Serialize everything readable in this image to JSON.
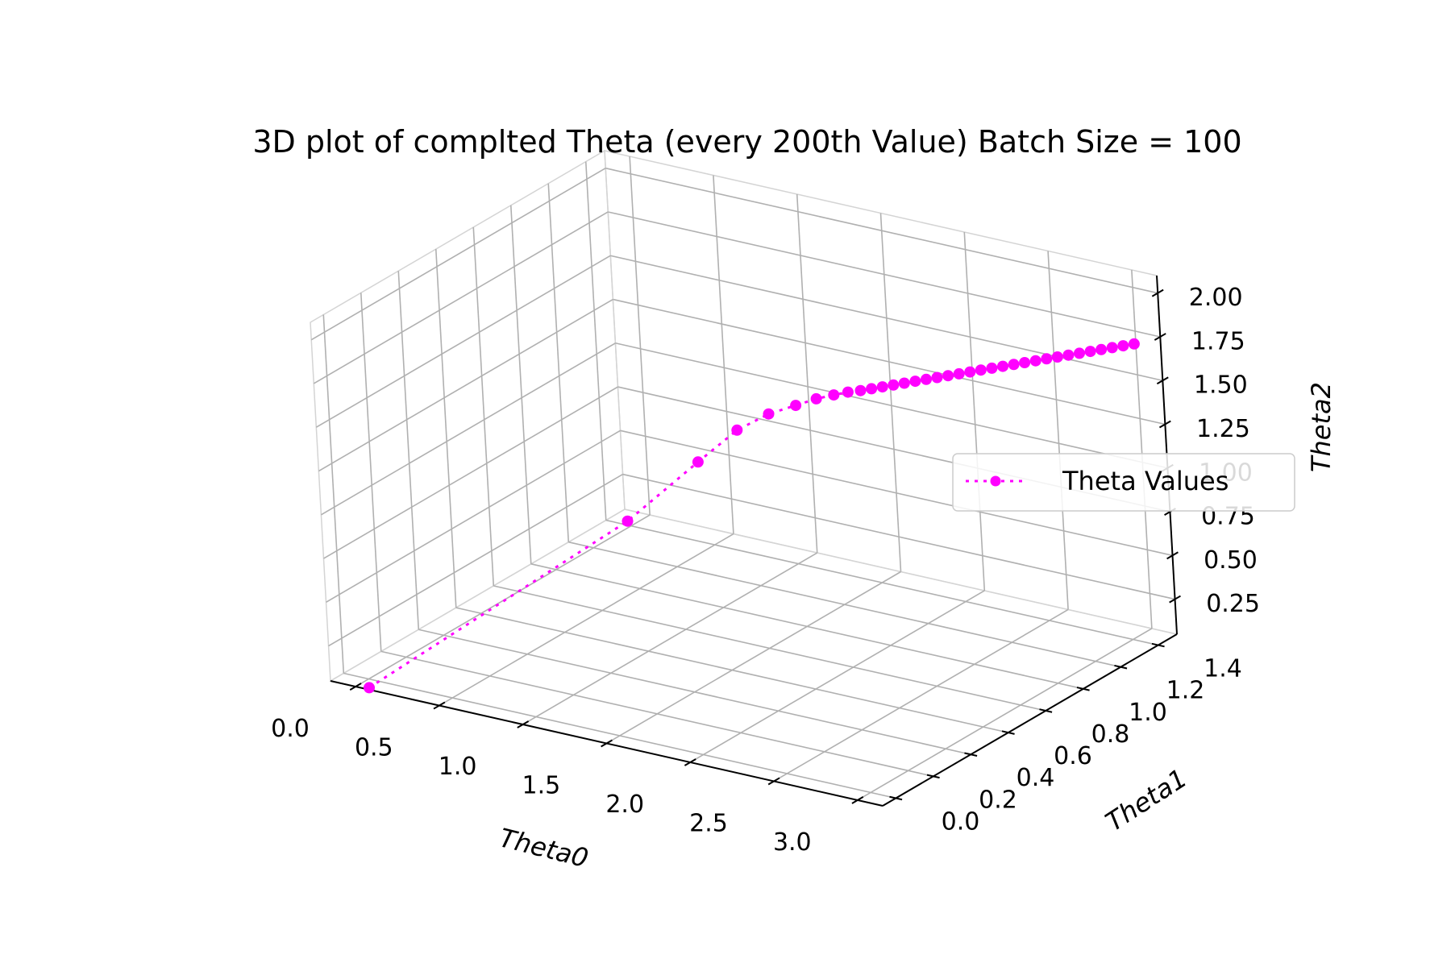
{
  "chart_data": {
    "type": "scatter",
    "projection": "3d",
    "title": "3D plot of complted Theta (every 200th Value) Batch Size = 100",
    "xlabel": "Theta0",
    "ylabel": "Theta1",
    "zlabel": "Theta2",
    "xlim": [
      -0.15,
      3.15
    ],
    "ylim": [
      -0.07,
      1.5
    ],
    "zlim": [
      0.05,
      2.1
    ],
    "xticks": [
      0.0,
      0.5,
      1.0,
      1.5,
      2.0,
      2.5,
      3.0
    ],
    "xtick_labels": [
      "0.0",
      "0.5",
      "1.0",
      "1.5",
      "2.0",
      "2.5",
      "3.0"
    ],
    "yticks": [
      0.0,
      0.2,
      0.4,
      0.6,
      0.8,
      1.0,
      1.2,
      1.4
    ],
    "ytick_labels": [
      "0.0",
      "0.2",
      "0.4",
      "0.6",
      "0.8",
      "1.0",
      "1.2",
      "1.4"
    ],
    "zticks": [
      0.25,
      0.5,
      0.75,
      1.0,
      1.25,
      1.5,
      1.75,
      2.0
    ],
    "ztick_labels": [
      "0.25",
      "0.50",
      "0.75",
      "1.00",
      "1.25",
      "1.50",
      "1.75",
      "2.00"
    ],
    "grid": true,
    "legend_position": "right",
    "series": [
      {
        "name": "Theta Values",
        "color": "#ff00ff",
        "linestyle": "dotted",
        "marker": "circle",
        "x": [
          0.0,
          1.55,
          1.95,
          2.15,
          2.3,
          2.42,
          2.5,
          2.56,
          2.6,
          2.63,
          2.65,
          2.67,
          2.69,
          2.71,
          2.73,
          2.75,
          2.77,
          2.79,
          2.81,
          2.83,
          2.85,
          2.87,
          2.89,
          2.91,
          2.93,
          2.95,
          2.97,
          2.99,
          3.01,
          3.03,
          3.05,
          3.07,
          3.09,
          3.11,
          3.13
        ],
        "y": [
          0.0,
          0.06,
          0.1,
          0.14,
          0.18,
          0.22,
          0.26,
          0.3,
          0.34,
          0.38,
          0.42,
          0.46,
          0.5,
          0.54,
          0.58,
          0.62,
          0.66,
          0.7,
          0.74,
          0.78,
          0.82,
          0.86,
          0.9,
          0.94,
          0.98,
          1.02,
          1.06,
          1.1,
          1.14,
          1.18,
          1.22,
          1.26,
          1.3,
          1.34,
          1.38
        ],
        "z": [
          0.0,
          1.25,
          1.65,
          1.85,
          1.95,
          2.0,
          2.03,
          2.04,
          2.04,
          2.03,
          2.02,
          2.01,
          2.0,
          1.99,
          1.98,
          1.97,
          1.96,
          1.95,
          1.94,
          1.93,
          1.92,
          1.91,
          1.9,
          1.89,
          1.88,
          1.87,
          1.86,
          1.85,
          1.84,
          1.83,
          1.82,
          1.81,
          1.8,
          1.79,
          1.78
        ]
      }
    ]
  }
}
